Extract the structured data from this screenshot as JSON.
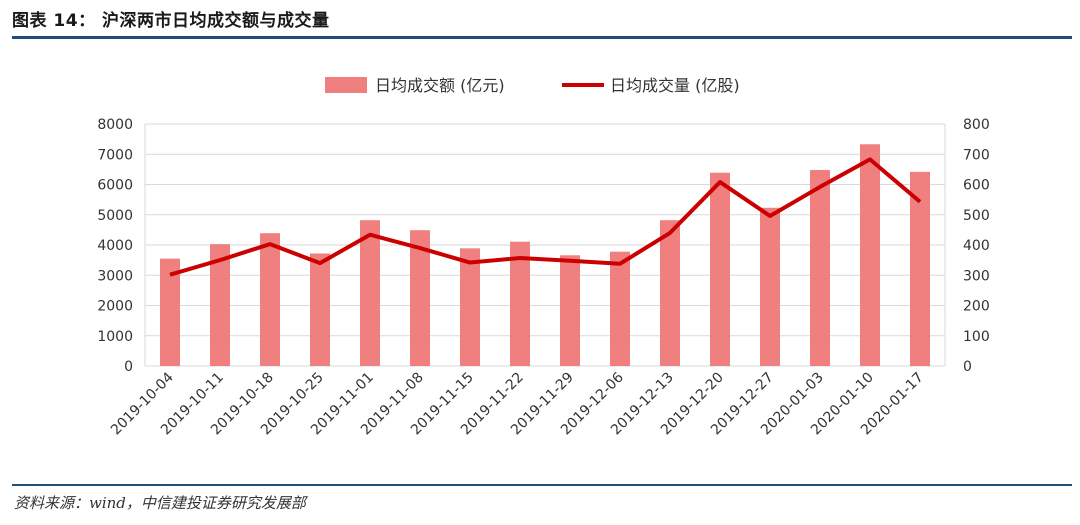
{
  "header": {
    "title": "图表 14：   沪深两市日均成交额与成交量"
  },
  "footer": {
    "source": "资料来源：wind，中信建投证券研究发展部"
  },
  "colors": {
    "bar": "#F08080",
    "line": "#CC0000",
    "grid": "#D9D9D9",
    "rule": "#1F4E79"
  },
  "chart_data": {
    "type": "bar+line",
    "categories": [
      "2019-10-04",
      "2019-10-11",
      "2019-10-18",
      "2019-10-25",
      "2019-11-01",
      "2019-11-08",
      "2019-11-15",
      "2019-11-22",
      "2019-11-29",
      "2019-12-06",
      "2019-12-13",
      "2019-12-20",
      "2019-12-27",
      "2020-01-03",
      "2020-01-10",
      "2020-01-17"
    ],
    "series": [
      {
        "name": "日均成交额 (亿元)",
        "type": "bar",
        "axis": "left",
        "values": [
          3550,
          4030,
          4390,
          3720,
          4820,
          4490,
          3890,
          4110,
          3660,
          3780,
          4820,
          6390,
          5230,
          6480,
          7330,
          6420
        ]
      },
      {
        "name": "日均成交量 (亿股)",
        "type": "line",
        "axis": "right",
        "values": [
          302,
          350,
          403,
          340,
          434,
          390,
          342,
          357,
          348,
          338,
          440,
          608,
          496,
          592,
          683,
          543
        ]
      }
    ],
    "y_left": {
      "min": 0,
      "max": 8000,
      "ticks": [
        "0",
        "1000",
        "2000",
        "3000",
        "4000",
        "5000",
        "6000",
        "7000",
        "8000"
      ]
    },
    "y_right": {
      "min": 0,
      "max": 800,
      "ticks": [
        "0",
        "100",
        "200",
        "300",
        "400",
        "500",
        "600",
        "700",
        "800"
      ]
    },
    "grid": true,
    "legend_position": "top-center"
  }
}
